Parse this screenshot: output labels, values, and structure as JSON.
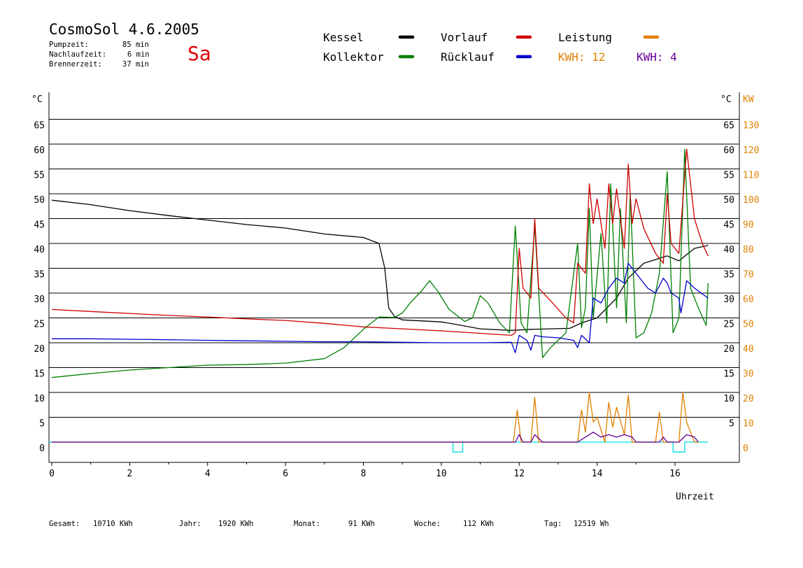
{
  "header": {
    "title": "CosmoSol 4.6.2005",
    "day": "Sa",
    "stats": [
      {
        "label": "Pumpzeit:",
        "value": "85 min"
      },
      {
        "label": "Nachlaufzeit:",
        "value": "6 min"
      },
      {
        "label": "Brennerzeit:",
        "value": "37 min"
      }
    ]
  },
  "legend": {
    "kessel": "Kessel",
    "kollektor": "Kollektor",
    "vorlauf": "Vorlauf",
    "ruecklauf": "Rücklauf",
    "leistung": "Leistung",
    "kwh1": "KWH: 12",
    "kwh2": "KWH: 4"
  },
  "colors": {
    "kessel": "#000000",
    "kollektor": "#008000",
    "vorlauf": "#cc0000",
    "ruecklauf": "#0000cc",
    "leistung": "#e08000",
    "kwh2": "#660099",
    "baseline": "#00dddd",
    "axis_right_kw": "#e08000"
  },
  "footer": [
    {
      "label": "Gesamt:",
      "value": "10710 KWh"
    },
    {
      "label": "Jahr:",
      "value": "1920 KWh"
    },
    {
      "label": "Monat:",
      "value": "91 KWh"
    },
    {
      "label": "Woche:",
      "value": "112 KWh"
    },
    {
      "label": "Tag:",
      "value": "12519 Wh"
    }
  ],
  "chart_data": {
    "type": "line",
    "xlabel": "Uhrzeit",
    "ylabel_left": "°C",
    "ylabel_right": "°C",
    "ylabel_right2": "KW",
    "xlim": [
      0,
      17.8
    ],
    "ylim": [
      -4.5,
      70
    ],
    "xticks": [
      0,
      2,
      4,
      6,
      8,
      10,
      12,
      14,
      16
    ],
    "yticks_left": [
      0,
      5,
      10,
      15,
      20,
      25,
      30,
      35,
      40,
      45,
      50,
      55,
      60,
      65
    ],
    "yticks_right": [
      5,
      10,
      15,
      20,
      25,
      30,
      35,
      40,
      45,
      50,
      55,
      60,
      65
    ],
    "yticks_kw": [
      0,
      10,
      20,
      30,
      40,
      50,
      60,
      70,
      80,
      90,
      100,
      110,
      120,
      130
    ],
    "grid": true,
    "series": [
      {
        "name": "Kessel",
        "x": [
          0,
          1,
          2,
          3,
          4,
          5,
          6,
          7,
          8,
          8.4,
          8.55,
          8.65,
          8.8,
          9,
          10,
          10.3,
          11,
          11.8,
          12.3,
          13.3,
          13.6,
          14,
          14.5,
          14.8,
          15.2,
          15.8,
          16.1,
          16.5,
          16.85
        ],
        "values": [
          48.7,
          47.8,
          46.6,
          45.6,
          44.7,
          43.8,
          43.1,
          41.9,
          41.2,
          40,
          35,
          27,
          25.3,
          24.6,
          24.2,
          23.8,
          22.8,
          22.5,
          22.7,
          22.9,
          24,
          25,
          29,
          33,
          36,
          37.5,
          36.5,
          39,
          39.6
        ]
      },
      {
        "name": "Kollektor",
        "x": [
          0,
          1,
          2,
          3,
          4,
          5,
          6,
          7,
          7.5,
          8,
          8.4,
          8.8,
          9,
          9.2,
          9.5,
          9.7,
          9.9,
          10.2,
          10.6,
          10.8,
          11,
          11.2,
          11.5,
          11.75,
          11.9,
          12.05,
          12.2,
          12.4,
          12.6,
          12.8,
          13.2,
          13.5,
          13.6,
          13.7,
          13.8,
          13.9,
          14.1,
          14.25,
          14.35,
          14.5,
          14.6,
          14.75,
          14.85,
          15,
          15.2,
          15.4,
          15.6,
          15.8,
          15.95,
          16.1,
          16.25,
          16.4,
          16.6,
          16.8,
          16.85
        ],
        "values": [
          13,
          13.8,
          14.5,
          15,
          15.5,
          15.6,
          15.9,
          16.8,
          19,
          22.7,
          25.2,
          25.1,
          26,
          28,
          30.5,
          32.5,
          30.5,
          26.7,
          24.3,
          25,
          29.5,
          28,
          24,
          22,
          43.5,
          24,
          22,
          43.5,
          17,
          19,
          22,
          40,
          23,
          27,
          47,
          25,
          42,
          24,
          52,
          27,
          47,
          24,
          50,
          21,
          22,
          26,
          34,
          54.5,
          22,
          25,
          59,
          31,
          27,
          23.5,
          32
        ]
      },
      {
        "name": "Vorlauf",
        "x": [
          0,
          1,
          2,
          3,
          4,
          5,
          6,
          7,
          8,
          9,
          10,
          11,
          11.8,
          11.9,
          12.0,
          12.1,
          12.3,
          12.4,
          12.5,
          12.8,
          13.2,
          13.4,
          13.5,
          13.7,
          13.8,
          13.9,
          14.0,
          14.2,
          14.3,
          14.4,
          14.5,
          14.7,
          14.8,
          14.9,
          15.0,
          15.2,
          15.5,
          15.7,
          15.8,
          15.9,
          16.1,
          16.3,
          16.5,
          16.7,
          16.85
        ],
        "values": [
          26.7,
          26.3,
          25.9,
          25.5,
          25.2,
          24.8,
          24.5,
          23.9,
          23.2,
          22.8,
          22.4,
          21.9,
          21.5,
          22,
          39,
          31,
          29,
          45,
          31,
          28.5,
          25,
          24,
          36,
          34,
          52,
          44,
          49,
          39,
          52,
          44,
          51,
          39,
          56,
          44,
          49,
          43,
          38,
          36,
          50,
          40,
          38,
          59,
          45,
          40,
          37.5
        ]
      },
      {
        "name": "Rücklauf",
        "x": [
          0,
          1,
          2,
          3,
          4,
          5,
          6,
          7,
          8,
          9,
          10,
          11,
          11.8,
          11.9,
          12.0,
          12.2,
          12.3,
          12.4,
          12.6,
          13.0,
          13.4,
          13.5,
          13.6,
          13.8,
          13.9,
          14.1,
          14.3,
          14.5,
          14.7,
          14.8,
          15.0,
          15.3,
          15.5,
          15.7,
          15.8,
          15.9,
          16.1,
          16.15,
          16.3,
          16.5,
          16.85
        ],
        "values": [
          20.8,
          20.8,
          20.7,
          20.6,
          20.5,
          20.4,
          20.3,
          20.2,
          20.2,
          20.1,
          20,
          20,
          20.1,
          18,
          21.5,
          20.5,
          18.5,
          21.5,
          21.2,
          21,
          20.5,
          19,
          21.5,
          20,
          29,
          28,
          31,
          33,
          32,
          36,
          34,
          31,
          30,
          33,
          32,
          30,
          29,
          26,
          32.5,
          31,
          29
        ]
      },
      {
        "name": "Leistung",
        "axis": "KW",
        "x": [
          0,
          11.85,
          11.95,
          12.05,
          12.3,
          12.4,
          12.5,
          13.5,
          13.6,
          13.7,
          13.8,
          13.9,
          14.0,
          14.2,
          14.3,
          14.4,
          14.5,
          14.7,
          14.8,
          14.9,
          15.5,
          15.6,
          15.7,
          15.9,
          16.1,
          16.2,
          16.3,
          16.5,
          16.6
        ],
        "values": [
          0,
          0,
          13,
          0,
          0,
          18,
          0,
          0,
          13,
          4,
          20,
          8,
          10,
          0,
          16,
          6,
          14,
          3,
          19,
          0,
          0,
          12,
          0,
          0,
          0,
          20,
          8,
          0,
          0
        ]
      },
      {
        "name": "KWH: 4",
        "axis": "KW",
        "x": [
          0,
          11.9,
          12.0,
          12.1,
          12.3,
          12.4,
          12.6,
          13.5,
          13.7,
          13.9,
          14.1,
          14.3,
          14.5,
          14.7,
          14.9,
          15.0,
          15.6,
          15.7,
          15.8,
          16.1,
          16.3,
          16.5,
          16.6
        ],
        "values": [
          0,
          0,
          3,
          0,
          0,
          3,
          0,
          0,
          2,
          4,
          2,
          3,
          2,
          3,
          2,
          0,
          0,
          2,
          0,
          0,
          3,
          2,
          0
        ]
      }
    ],
    "baseline_pulses": [
      {
        "x0": 10.3,
        "x1": 10.55,
        "value": -2
      },
      {
        "x0": 15.95,
        "x1": 16.25,
        "value": -2
      }
    ]
  }
}
